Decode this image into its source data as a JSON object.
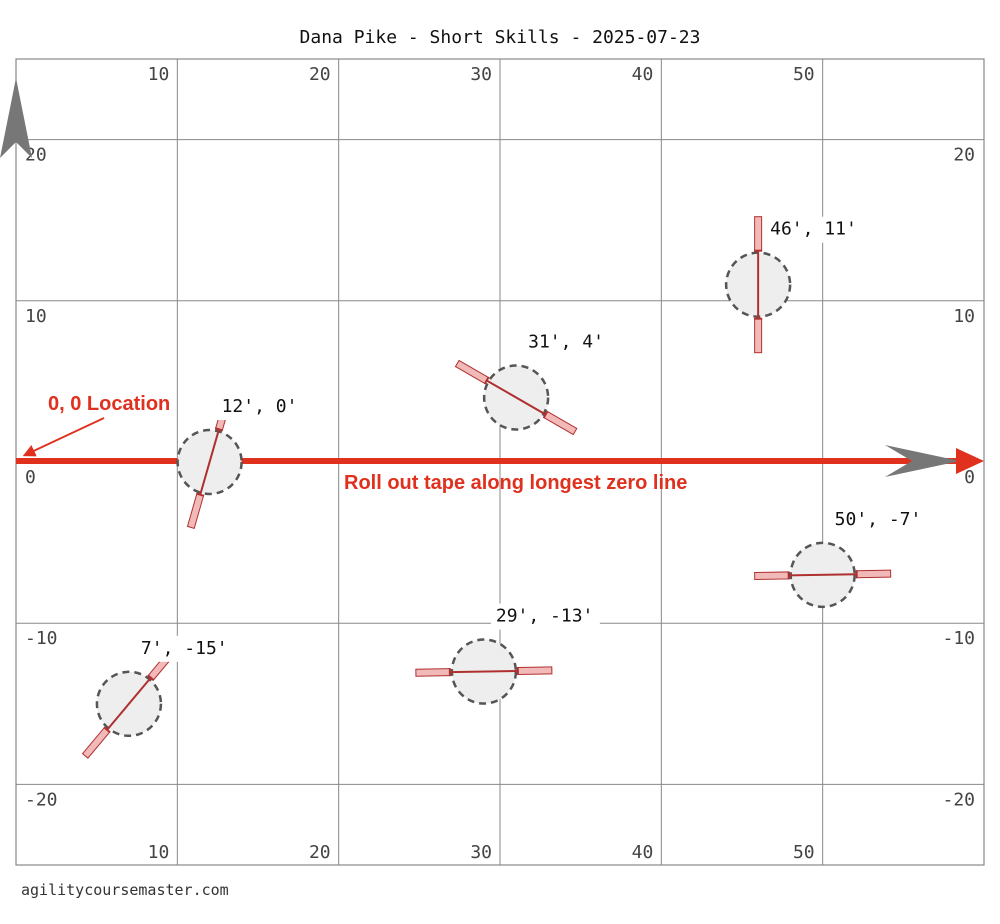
{
  "title": "Dana Pike - Short Skills - 2025-07-23",
  "footer": "agilitycoursemaster.com",
  "field": {
    "x_range": [
      0,
      60
    ],
    "y_range": [
      -25,
      25
    ],
    "x_ticks": [
      10,
      20,
      30,
      40,
      50
    ],
    "x_tick_labels": [
      "10",
      "20",
      "30",
      "40",
      "50"
    ],
    "y_ticks": [
      20,
      10,
      0,
      -10,
      -20
    ],
    "y_tick_labels": [
      "20",
      "10",
      "0",
      "-10",
      "-20"
    ]
  },
  "origin_label": "0, 0 Location",
  "tape_label": "Roll out tape along longest zero line",
  "colors": {
    "grid": "#888888",
    "annotation": "#e0301e",
    "obstacle_fill": "#f2b9b9",
    "obstacle_stroke": "#b03030",
    "circle_fill": "#eeeeee",
    "circle_stroke": "#555555",
    "arrow_gray": "#777777"
  },
  "obstacles": [
    {
      "label": "46', 11'",
      "x": 46,
      "y": 11,
      "angle_deg": 90
    },
    {
      "label": "31', 4'",
      "x": 31,
      "y": 4,
      "angle_deg": -30
    },
    {
      "label": "12', 0'",
      "x": 12,
      "y": 0,
      "angle_deg": 74
    },
    {
      "label": "50', -7'",
      "x": 50,
      "y": -7,
      "angle_deg": 1
    },
    {
      "label": "29', -13'",
      "x": 29,
      "y": -13,
      "angle_deg": 1
    },
    {
      "label": "7', -15'",
      "x": 7,
      "y": -15,
      "angle_deg": 50
    }
  ]
}
